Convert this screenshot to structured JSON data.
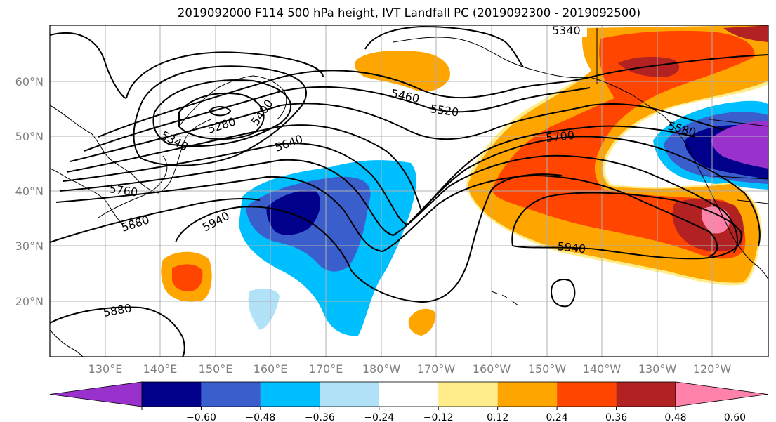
{
  "title": "2019092000 F114 500 hPa height, IVT Landfall PC (2019092300 - 2019092500)",
  "lat_labels": [
    "60°N",
    "50°N",
    "40°N",
    "30°N",
    "20°N"
  ],
  "lon_labels": [
    "130°E",
    "140°E",
    "150°E",
    "160°E",
    "170°E",
    "180°W",
    "170°W",
    "160°W",
    "150°W",
    "140°W",
    "130°W",
    "120°W"
  ],
  "contour_labels": [
    "5340",
    "5460",
    "5520",
    "5280",
    "5340",
    "5400",
    "5640",
    "5700",
    "5580",
    "5760",
    "5880",
    "5940",
    "5940",
    "5880"
  ],
  "colorbar": {
    "ticks": [
      "−0.60",
      "−0.48",
      "−0.36",
      "−0.24",
      "−0.12",
      "0.12",
      "0.24",
      "0.36",
      "0.48",
      "0.60"
    ],
    "colors": [
      "#9932cc",
      "#00008b",
      "#3a5fcd",
      "#00bfff",
      "#b2e2f8",
      "#ffffff",
      "#ffec8b",
      "#ffa500",
      "#ff4500",
      "#b22222",
      "#ff82ab"
    ]
  },
  "colors": {
    "grid": "#b0b0b0",
    "contour": "#000000",
    "coast": "#000000"
  }
}
